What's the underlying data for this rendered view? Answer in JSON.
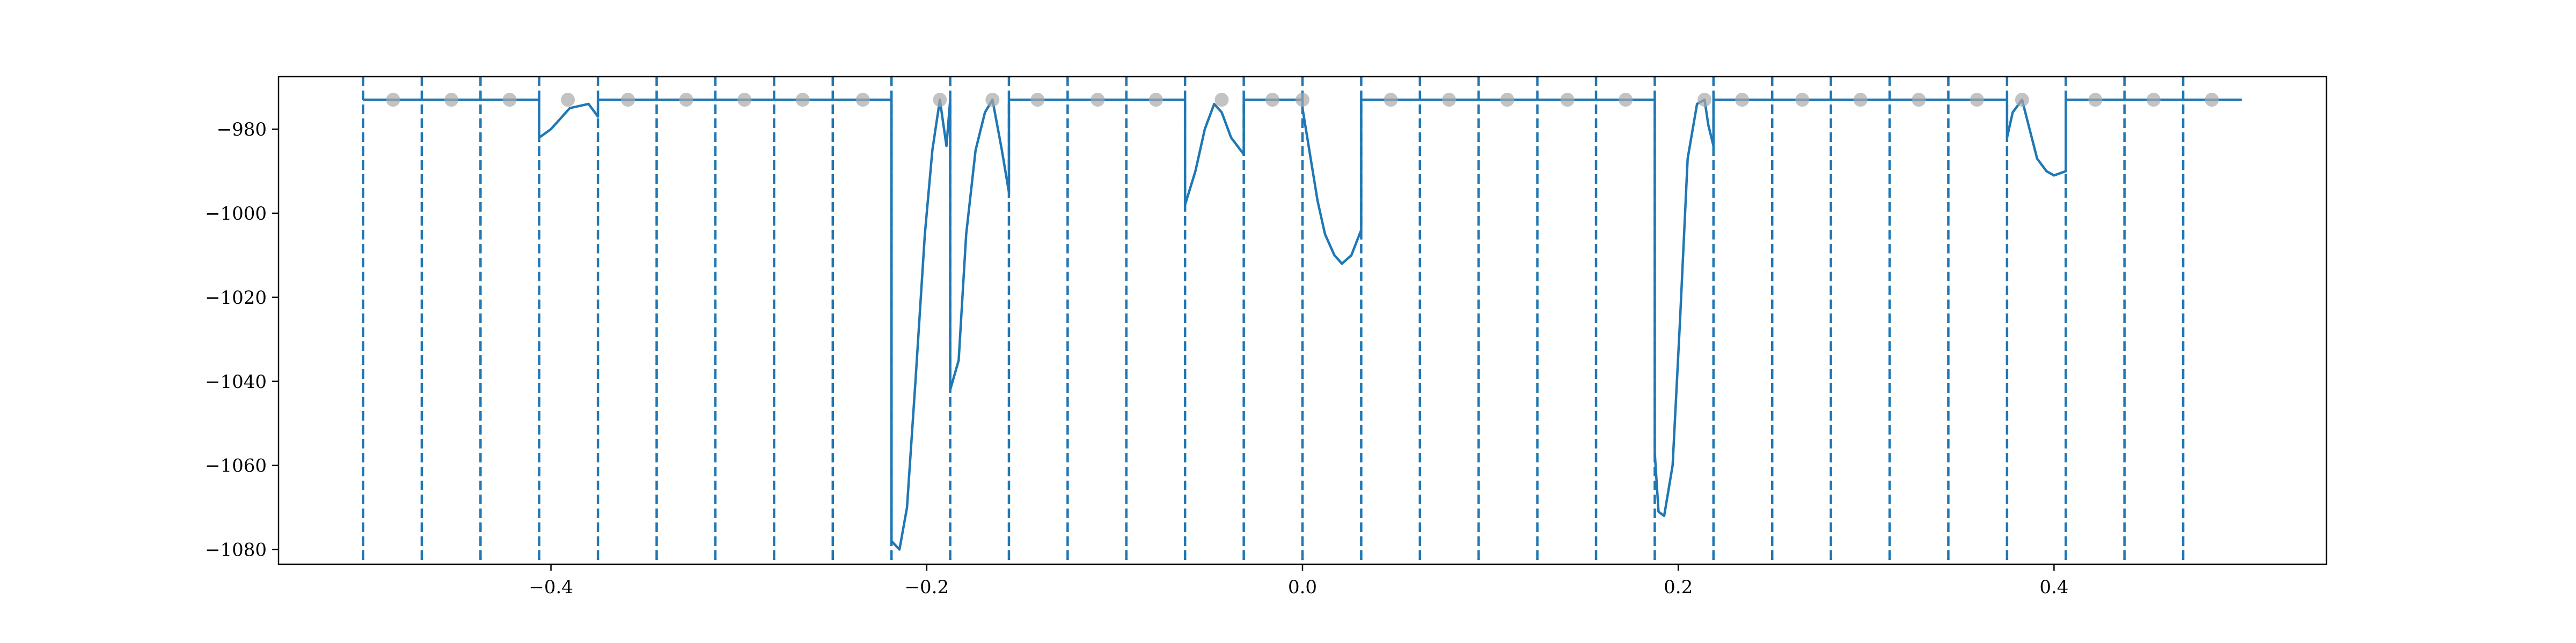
{
  "chart_data": {
    "type": "line",
    "title": "",
    "xlabel": "",
    "ylabel": "",
    "xlim": [
      -0.545,
      0.545
    ],
    "ylim": [
      -1083.5,
      -967.5
    ],
    "grid": false,
    "legend": "none",
    "x_ticks": [
      -0.4,
      -0.2,
      0.0,
      0.2,
      0.4
    ],
    "x_tick_labels": [
      "−0.4",
      "−0.2",
      "0.0",
      "0.2",
      "0.4"
    ],
    "y_ticks": [
      -980,
      -1000,
      -1020,
      -1040,
      -1060,
      -1080
    ],
    "y_tick_labels": [
      "−980",
      "−1000",
      "−1020",
      "−1040",
      "−1060",
      "−1080"
    ],
    "colors": {
      "line": "#1f77b4",
      "markers": "#a9a9a9"
    },
    "baseline": -973,
    "vlines": [
      -0.5,
      -0.46875,
      -0.4375,
      -0.40625,
      -0.375,
      -0.34375,
      -0.3125,
      -0.28125,
      -0.25,
      -0.21875,
      -0.1875,
      -0.15625,
      -0.125,
      -0.09375,
      -0.0625,
      -0.03125,
      0.0,
      0.03125,
      0.0625,
      0.09375,
      0.125,
      0.15625,
      0.1875,
      0.21875,
      0.25,
      0.28125,
      0.3125,
      0.34375,
      0.375,
      0.40625,
      0.4375,
      0.46875
    ],
    "markers": {
      "x": [
        -0.484,
        -0.453,
        -0.422,
        -0.391,
        -0.359,
        -0.328,
        -0.297,
        -0.266,
        -0.234,
        -0.193,
        -0.165,
        -0.141,
        -0.109,
        -0.078,
        -0.043,
        -0.016,
        0.0,
        0.047,
        0.078,
        0.109,
        0.141,
        0.172,
        0.214,
        0.234,
        0.266,
        0.297,
        0.328,
        0.359,
        0.383,
        0.422,
        0.453,
        0.484
      ],
      "y": [
        -973,
        -973,
        -973,
        -973,
        -973,
        -973,
        -973,
        -973,
        -973,
        -973,
        -973,
        -973,
        -973,
        -973,
        -973,
        -973,
        -973,
        -973,
        -973,
        -973,
        -973,
        -973,
        -973,
        -973,
        -973,
        -973,
        -973,
        -973,
        -973,
        -973,
        -973,
        -973
      ]
    },
    "series": [
      {
        "x": [
          -0.5,
          -0.40625,
          -0.40625,
          -0.4,
          -0.39,
          -0.38,
          -0.375,
          -0.375,
          -0.21875,
          -0.21875,
          -0.2145,
          -0.2105,
          -0.206,
          -0.201,
          -0.197,
          -0.193,
          -0.1895,
          -0.1875,
          -0.1875,
          -0.183,
          -0.179,
          -0.174,
          -0.169,
          -0.165,
          -0.16,
          -0.15625,
          -0.15625,
          -0.0625,
          -0.0625,
          -0.057,
          -0.052,
          -0.047,
          -0.043,
          -0.038,
          -0.03125,
          -0.03125,
          0.0,
          0.0,
          0.004,
          0.008,
          0.012,
          0.017,
          0.021,
          0.026,
          0.03125,
          0.03125,
          0.1875,
          0.1875,
          0.1895,
          0.1925,
          0.197,
          0.201,
          0.205,
          0.21,
          0.214,
          0.216,
          0.21875,
          0.21875,
          0.375,
          0.375,
          0.378,
          0.383,
          0.387,
          0.391,
          0.396,
          0.4,
          0.40625,
          0.40625,
          0.5
        ],
        "y": [
          -973,
          -973,
          -982,
          -980,
          -975,
          -974,
          -977,
          -973,
          -973,
          -1078,
          -1080,
          -1070,
          -1040,
          -1005,
          -985,
          -973,
          -984,
          -973,
          -1042,
          -1035,
          -1005,
          -985,
          -976,
          -973,
          -985,
          -995,
          -973,
          -973,
          -998,
          -990,
          -980,
          -974,
          -976,
          -982,
          -986,
          -973,
          -973,
          -975,
          -986,
          -997,
          -1005,
          -1010,
          -1012,
          -1010,
          -1004,
          -973,
          -973,
          -1057,
          -1071,
          -1072,
          -1060,
          -1025,
          -987,
          -974,
          -973,
          -979,
          -984,
          -973,
          -973,
          -982,
          -976,
          -973,
          -980,
          -987,
          -990,
          -991,
          -990,
          -973,
          -973
        ]
      }
    ]
  }
}
